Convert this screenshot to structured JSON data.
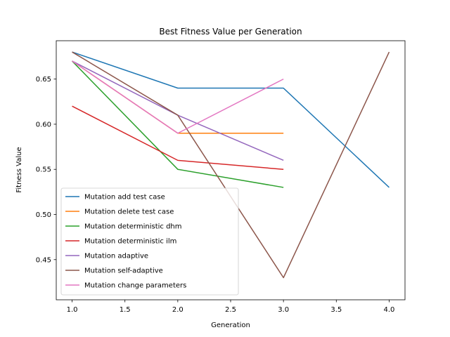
{
  "chart_data": {
    "type": "line",
    "title": "Best Fitness Value per Generation",
    "xlabel": "Generation",
    "ylabel": "Fitness Value",
    "xlim": [
      0.85,
      4.15
    ],
    "ylim": [
      0.4055,
      0.6925
    ],
    "xticks": [
      1.0,
      1.5,
      2.0,
      2.5,
      3.0,
      3.5,
      4.0
    ],
    "xtick_labels": [
      "1.0",
      "1.5",
      "2.0",
      "2.5",
      "3.0",
      "3.5",
      "4.0"
    ],
    "yticks": [
      0.45,
      0.5,
      0.55,
      0.6,
      0.65
    ],
    "ytick_labels": [
      "0.45",
      "0.50",
      "0.55",
      "0.60",
      "0.65"
    ],
    "grid": false,
    "legend_position": "lower-left",
    "series": [
      {
        "name": "Mutation add test case",
        "color": "#1f77b4",
        "x": [
          1,
          2,
          3,
          4
        ],
        "y": [
          0.68,
          0.64,
          0.64,
          0.53
        ]
      },
      {
        "name": "Mutation delete test case",
        "color": "#ff7f0e",
        "x": [
          1,
          2,
          3
        ],
        "y": [
          0.67,
          0.59,
          0.59
        ]
      },
      {
        "name": "Mutation deterministic dhm",
        "color": "#2ca02c",
        "x": [
          1,
          2,
          3
        ],
        "y": [
          0.67,
          0.55,
          0.53
        ]
      },
      {
        "name": "Mutation deterministic ilm",
        "color": "#d62728",
        "x": [
          1,
          2,
          3
        ],
        "y": [
          0.62,
          0.56,
          0.55
        ]
      },
      {
        "name": "Mutation adaptive",
        "color": "#9467bd",
        "x": [
          1,
          2,
          3
        ],
        "y": [
          0.67,
          0.61,
          0.56
        ]
      },
      {
        "name": "Mutation self-adaptive",
        "color": "#8c564b",
        "x": [
          1,
          2,
          3,
          4
        ],
        "y": [
          0.68,
          0.61,
          0.43,
          0.68
        ]
      },
      {
        "name": "Mutation change parameters",
        "color": "#e377c2",
        "x": [
          1,
          2,
          3
        ],
        "y": [
          0.67,
          0.59,
          0.65
        ]
      }
    ]
  }
}
